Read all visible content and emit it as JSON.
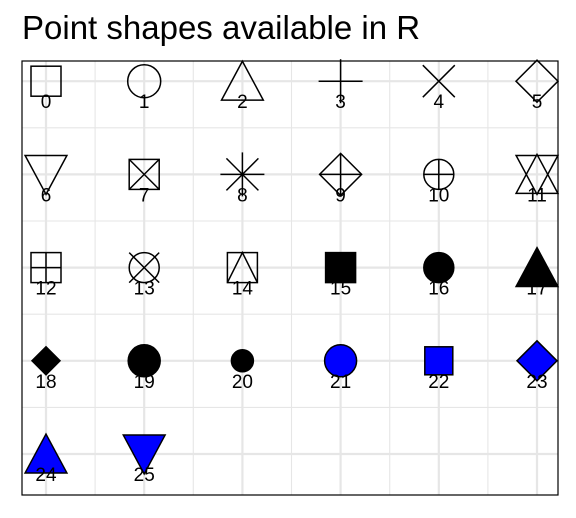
{
  "chart_data": {
    "type": "scatter",
    "title": "Point shapes available in R",
    "xlabel": "",
    "ylabel": "",
    "grid": true,
    "legend": "none",
    "columns": 6,
    "rows": 5,
    "xlim": [
      0,
      5
    ],
    "ylim": [
      0,
      4
    ],
    "colors": {
      "outline": "#000000",
      "fill": "#0000ff",
      "grid": "#e6e6e6",
      "panel_border": "#000000"
    },
    "points": [
      {
        "label": "0",
        "x": 0,
        "y": 4,
        "shape": "open-square"
      },
      {
        "label": "1",
        "x": 1,
        "y": 4,
        "shape": "open-circle"
      },
      {
        "label": "2",
        "x": 2,
        "y": 4,
        "shape": "open-triangle-up"
      },
      {
        "label": "3",
        "x": 3,
        "y": 4,
        "shape": "plus"
      },
      {
        "label": "4",
        "x": 4,
        "y": 4,
        "shape": "cross"
      },
      {
        "label": "5",
        "x": 5,
        "y": 4,
        "shape": "open-diamond"
      },
      {
        "label": "6",
        "x": 0,
        "y": 3,
        "shape": "open-triangle-down"
      },
      {
        "label": "7",
        "x": 1,
        "y": 3,
        "shape": "square-cross"
      },
      {
        "label": "8",
        "x": 2,
        "y": 3,
        "shape": "asterisk"
      },
      {
        "label": "9",
        "x": 3,
        "y": 3,
        "shape": "diamond-plus"
      },
      {
        "label": "10",
        "x": 4,
        "y": 3,
        "shape": "circle-plus"
      },
      {
        "label": "11",
        "x": 5,
        "y": 3,
        "shape": "star-of-david"
      },
      {
        "label": "12",
        "x": 0,
        "y": 2,
        "shape": "square-plus"
      },
      {
        "label": "13",
        "x": 1,
        "y": 2,
        "shape": "circle-cross"
      },
      {
        "label": "14",
        "x": 2,
        "y": 2,
        "shape": "square-triangle"
      },
      {
        "label": "15",
        "x": 3,
        "y": 2,
        "shape": "solid-square"
      },
      {
        "label": "16",
        "x": 4,
        "y": 2,
        "shape": "solid-circle"
      },
      {
        "label": "17",
        "x": 5,
        "y": 2,
        "shape": "solid-triangle-up"
      },
      {
        "label": "18",
        "x": 0,
        "y": 1,
        "shape": "solid-diamond-small"
      },
      {
        "label": "19",
        "x": 1,
        "y": 1,
        "shape": "solid-circle-large"
      },
      {
        "label": "20",
        "x": 2,
        "y": 1,
        "shape": "solid-circle-small"
      },
      {
        "label": "21",
        "x": 3,
        "y": 1,
        "shape": "filled-circle"
      },
      {
        "label": "22",
        "x": 4,
        "y": 1,
        "shape": "filled-square"
      },
      {
        "label": "23",
        "x": 5,
        "y": 1,
        "shape": "filled-diamond"
      },
      {
        "label": "24",
        "x": 0,
        "y": 0,
        "shape": "filled-triangle-up"
      },
      {
        "label": "25",
        "x": 1,
        "y": 0,
        "shape": "filled-triangle-down"
      }
    ]
  }
}
